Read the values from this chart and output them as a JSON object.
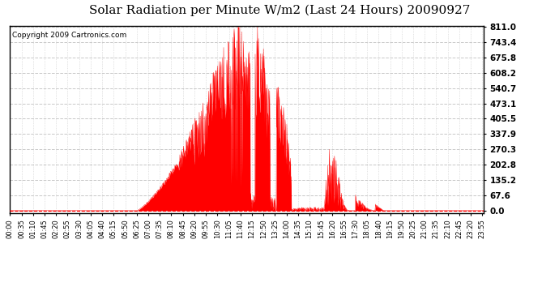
{
  "title": "Solar Radiation per Minute W/m2 (Last 24 Hours) 20090927",
  "copyright": "Copyright 2009 Cartronics.com",
  "ymin": 0.0,
  "ymax": 811.0,
  "yticks": [
    0.0,
    67.6,
    135.2,
    202.8,
    270.3,
    337.9,
    405.5,
    473.1,
    540.7,
    608.2,
    675.8,
    743.4,
    811.0
  ],
  "bar_color": "#FF0000",
  "dashed_line_color": "#FF0000",
  "grid_color": "#C8C8C8",
  "background_color": "#FFFFFF",
  "border_color": "#000000",
  "title_fontsize": 11,
  "copyright_fontsize": 6.5,
  "tick_fontsize": 6,
  "ytick_fontsize": 7.5,
  "tick_interval_minutes": 35
}
